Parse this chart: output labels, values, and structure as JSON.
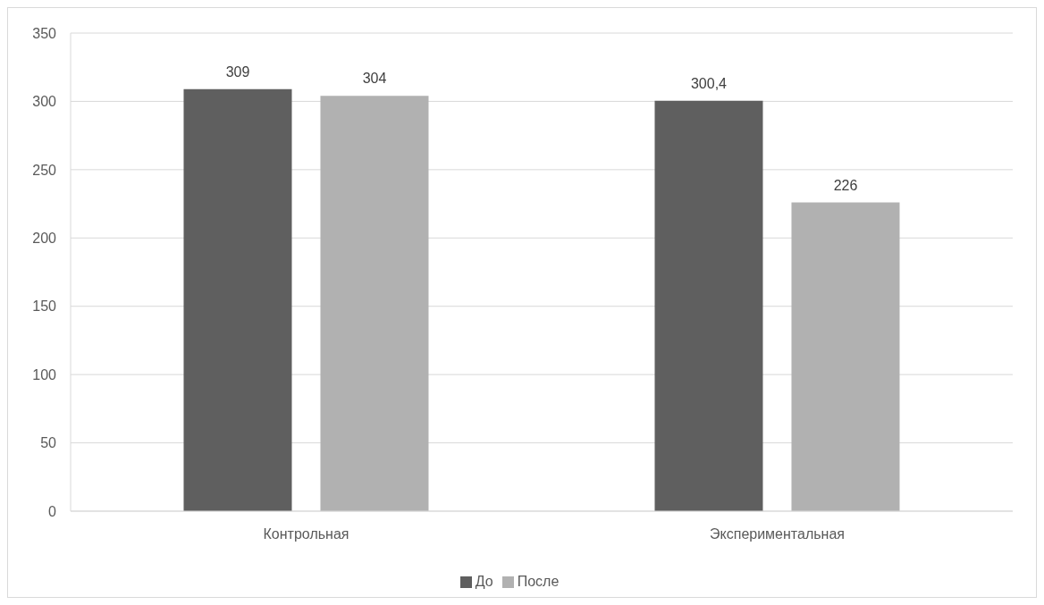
{
  "chart_data": {
    "type": "bar",
    "categories": [
      "Контрольная",
      "Экспериментальная"
    ],
    "series": [
      {
        "name": "До",
        "color": "#5f5f5f",
        "values": [
          309,
          300.4
        ],
        "value_labels": [
          "309",
          "300,4"
        ]
      },
      {
        "name": "После",
        "color": "#b1b1b1",
        "values": [
          304,
          226
        ],
        "value_labels": [
          "304",
          "226"
        ]
      }
    ],
    "ylim": [
      0,
      350
    ],
    "yticks": [
      0,
      50,
      100,
      150,
      200,
      250,
      300,
      350
    ],
    "grid": "y",
    "legend": "bottom"
  }
}
